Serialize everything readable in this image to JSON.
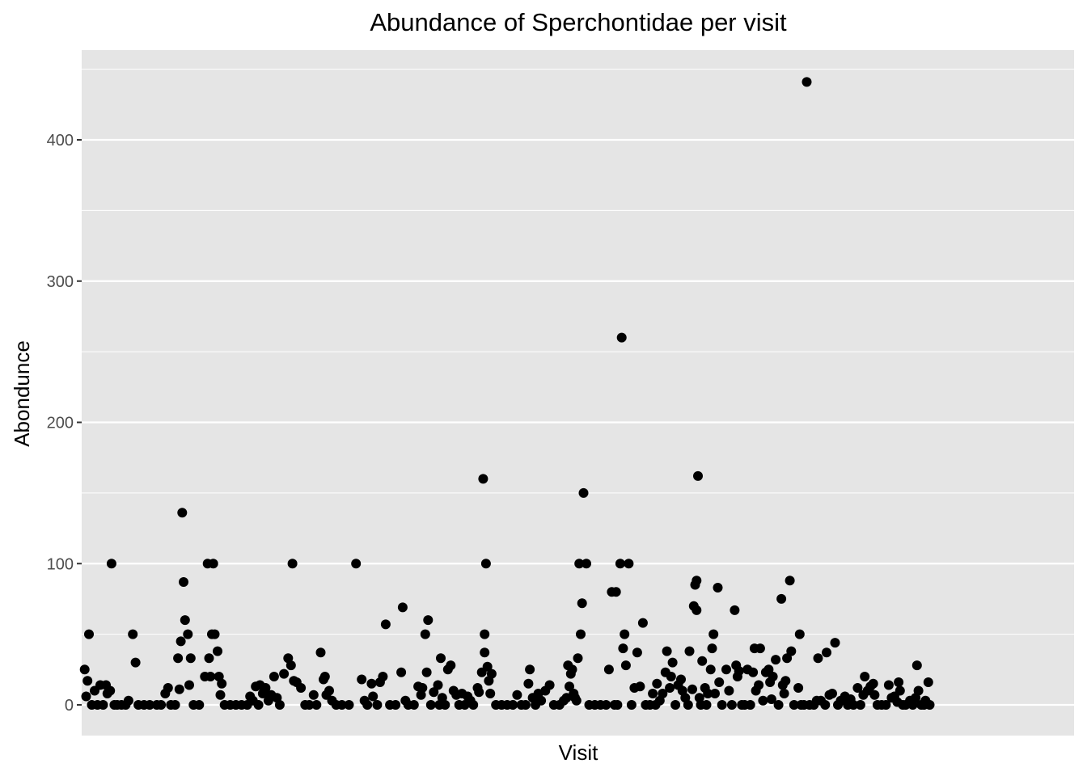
{
  "chart_data": {
    "type": "scatter",
    "title": "Abundance of Sperchontidae per visit",
    "xlabel": "Visit",
    "ylabel": "Abondunce",
    "ylim": [
      -22,
      450
    ],
    "xlim": [
      0,
      700
    ],
    "y_ticks": [
      0,
      100,
      200,
      300,
      400
    ],
    "y_tick_labels": [
      "0",
      "100",
      "200",
      "300",
      "400"
    ],
    "x_ticks_shown": false,
    "grid": true,
    "legend": "none",
    "colors": {
      "panel": "#e5e5e5",
      "grid": "#ffffff",
      "point": "#000000",
      "tick_text": "#4d4d4d"
    },
    "points": [
      {
        "x": 1,
        "y": 25
      },
      {
        "x": 2,
        "y": 6
      },
      {
        "x": 3,
        "y": 17
      },
      {
        "x": 4,
        "y": 50
      },
      {
        "x": 6,
        "y": 0
      },
      {
        "x": 8,
        "y": 10
      },
      {
        "x": 10,
        "y": 0
      },
      {
        "x": 12,
        "y": 14
      },
      {
        "x": 14,
        "y": 0
      },
      {
        "x": 16,
        "y": 14
      },
      {
        "x": 17,
        "y": 8
      },
      {
        "x": 19,
        "y": 10
      },
      {
        "x": 20,
        "y": 100
      },
      {
        "x": 22,
        "y": 0
      },
      {
        "x": 24,
        "y": 0
      },
      {
        "x": 27,
        "y": 0
      },
      {
        "x": 30,
        "y": 0
      },
      {
        "x": 32,
        "y": 3
      },
      {
        "x": 35,
        "y": 50
      },
      {
        "x": 37,
        "y": 30
      },
      {
        "x": 39,
        "y": 0
      },
      {
        "x": 43,
        "y": 0
      },
      {
        "x": 47,
        "y": 0
      },
      {
        "x": 52,
        "y": 0
      },
      {
        "x": 55,
        "y": 0
      },
      {
        "x": 58,
        "y": 8
      },
      {
        "x": 60,
        "y": 12
      },
      {
        "x": 62,
        "y": 0
      },
      {
        "x": 65,
        "y": 0
      },
      {
        "x": 67,
        "y": 33
      },
      {
        "x": 68,
        "y": 11
      },
      {
        "x": 69,
        "y": 45
      },
      {
        "x": 70,
        "y": 136
      },
      {
        "x": 71,
        "y": 87
      },
      {
        "x": 72,
        "y": 60
      },
      {
        "x": 74,
        "y": 50
      },
      {
        "x": 75,
        "y": 14
      },
      {
        "x": 76,
        "y": 33
      },
      {
        "x": 78,
        "y": 0
      },
      {
        "x": 82,
        "y": 0
      },
      {
        "x": 86,
        "y": 20
      },
      {
        "x": 88,
        "y": 100
      },
      {
        "x": 89,
        "y": 33
      },
      {
        "x": 90,
        "y": 20
      },
      {
        "x": 91,
        "y": 50
      },
      {
        "x": 92,
        "y": 100
      },
      {
        "x": 93,
        "y": 50
      },
      {
        "x": 95,
        "y": 38
      },
      {
        "x": 96,
        "y": 20
      },
      {
        "x": 97,
        "y": 7
      },
      {
        "x": 98,
        "y": 15
      },
      {
        "x": 100,
        "y": 0
      },
      {
        "x": 104,
        "y": 0
      },
      {
        "x": 108,
        "y": 0
      },
      {
        "x": 112,
        "y": 0
      },
      {
        "x": 116,
        "y": 0
      },
      {
        "x": 118,
        "y": 6
      },
      {
        "x": 120,
        "y": 3
      },
      {
        "x": 122,
        "y": 13
      },
      {
        "x": 124,
        "y": 0
      },
      {
        "x": 125,
        "y": 14
      },
      {
        "x": 127,
        "y": 8
      },
      {
        "x": 129,
        "y": 12
      },
      {
        "x": 131,
        "y": 3
      },
      {
        "x": 133,
        "y": 7
      },
      {
        "x": 135,
        "y": 20
      },
      {
        "x": 137,
        "y": 5
      },
      {
        "x": 139,
        "y": 0
      },
      {
        "x": 142,
        "y": 22
      },
      {
        "x": 145,
        "y": 33
      },
      {
        "x": 147,
        "y": 28
      },
      {
        "x": 148,
        "y": 100
      },
      {
        "x": 149,
        "y": 17
      },
      {
        "x": 151,
        "y": 16
      },
      {
        "x": 154,
        "y": 12
      },
      {
        "x": 157,
        "y": 0
      },
      {
        "x": 160,
        "y": 0
      },
      {
        "x": 163,
        "y": 7
      },
      {
        "x": 165,
        "y": 0
      },
      {
        "x": 168,
        "y": 37
      },
      {
        "x": 170,
        "y": 18
      },
      {
        "x": 171,
        "y": 20
      },
      {
        "x": 172,
        "y": 7
      },
      {
        "x": 174,
        "y": 10
      },
      {
        "x": 176,
        "y": 3
      },
      {
        "x": 179,
        "y": 0
      },
      {
        "x": 183,
        "y": 0
      },
      {
        "x": 188,
        "y": 0
      },
      {
        "x": 193,
        "y": 100
      },
      {
        "x": 197,
        "y": 18
      },
      {
        "x": 199,
        "y": 3
      },
      {
        "x": 201,
        "y": 0
      },
      {
        "x": 204,
        "y": 15
      },
      {
        "x": 205,
        "y": 6
      },
      {
        "x": 208,
        "y": 0
      },
      {
        "x": 210,
        "y": 16
      },
      {
        "x": 212,
        "y": 20
      },
      {
        "x": 214,
        "y": 57
      },
      {
        "x": 217,
        "y": 0
      },
      {
        "x": 221,
        "y": 0
      },
      {
        "x": 225,
        "y": 23
      },
      {
        "x": 226,
        "y": 69
      },
      {
        "x": 228,
        "y": 3
      },
      {
        "x": 230,
        "y": 0
      },
      {
        "x": 234,
        "y": 0
      },
      {
        "x": 237,
        "y": 13
      },
      {
        "x": 239,
        "y": 7
      },
      {
        "x": 240,
        "y": 12
      },
      {
        "x": 242,
        "y": 50
      },
      {
        "x": 243,
        "y": 23
      },
      {
        "x": 244,
        "y": 60
      },
      {
        "x": 246,
        "y": 0
      },
      {
        "x": 248,
        "y": 9
      },
      {
        "x": 251,
        "y": 14
      },
      {
        "x": 252,
        "y": 0
      },
      {
        "x": 253,
        "y": 33
      },
      {
        "x": 254,
        "y": 5
      },
      {
        "x": 256,
        "y": 0
      },
      {
        "x": 258,
        "y": 25
      },
      {
        "x": 260,
        "y": 28
      },
      {
        "x": 262,
        "y": 10
      },
      {
        "x": 264,
        "y": 7
      },
      {
        "x": 266,
        "y": 0
      },
      {
        "x": 268,
        "y": 8
      },
      {
        "x": 270,
        "y": 0
      },
      {
        "x": 272,
        "y": 6
      },
      {
        "x": 274,
        "y": 3
      },
      {
        "x": 276,
        "y": 0
      },
      {
        "x": 279,
        "y": 12
      },
      {
        "x": 280,
        "y": 9
      },
      {
        "x": 282,
        "y": 23
      },
      {
        "x": 283,
        "y": 160
      },
      {
        "x": 284,
        "y": 50
      },
      {
        "x": 284,
        "y": 37
      },
      {
        "x": 285,
        "y": 100
      },
      {
        "x": 286,
        "y": 27
      },
      {
        "x": 287,
        "y": 17
      },
      {
        "x": 288,
        "y": 8
      },
      {
        "x": 289,
        "y": 22
      },
      {
        "x": 292,
        "y": 0
      },
      {
        "x": 296,
        "y": 0
      },
      {
        "x": 300,
        "y": 0
      },
      {
        "x": 304,
        "y": 0
      },
      {
        "x": 307,
        "y": 7
      },
      {
        "x": 310,
        "y": 0
      },
      {
        "x": 313,
        "y": 0
      },
      {
        "x": 315,
        "y": 15
      },
      {
        "x": 316,
        "y": 25
      },
      {
        "x": 318,
        "y": 5
      },
      {
        "x": 320,
        "y": 0
      },
      {
        "x": 322,
        "y": 8
      },
      {
        "x": 324,
        "y": 3
      },
      {
        "x": 327,
        "y": 10
      },
      {
        "x": 330,
        "y": 14
      },
      {
        "x": 333,
        "y": 0
      },
      {
        "x": 337,
        "y": 0
      },
      {
        "x": 340,
        "y": 3
      },
      {
        "x": 342,
        "y": 5
      },
      {
        "x": 343,
        "y": 28
      },
      {
        "x": 344,
        "y": 13
      },
      {
        "x": 345,
        "y": 22
      },
      {
        "x": 346,
        "y": 25
      },
      {
        "x": 347,
        "y": 8
      },
      {
        "x": 348,
        "y": 5
      },
      {
        "x": 349,
        "y": 3
      },
      {
        "x": 350,
        "y": 33
      },
      {
        "x": 351,
        "y": 100
      },
      {
        "x": 352,
        "y": 50
      },
      {
        "x": 353,
        "y": 72
      },
      {
        "x": 354,
        "y": 150
      },
      {
        "x": 356,
        "y": 100
      },
      {
        "x": 358,
        "y": 0
      },
      {
        "x": 362,
        "y": 0
      },
      {
        "x": 366,
        "y": 0
      },
      {
        "x": 370,
        "y": 0
      },
      {
        "x": 372,
        "y": 25
      },
      {
        "x": 374,
        "y": 80
      },
      {
        "x": 376,
        "y": 0
      },
      {
        "x": 377,
        "y": 80
      },
      {
        "x": 378,
        "y": 0
      },
      {
        "x": 380,
        "y": 100
      },
      {
        "x": 381,
        "y": 260
      },
      {
        "x": 382,
        "y": 40
      },
      {
        "x": 383,
        "y": 50
      },
      {
        "x": 384,
        "y": 28
      },
      {
        "x": 386,
        "y": 100
      },
      {
        "x": 388,
        "y": 0
      },
      {
        "x": 390,
        "y": 12
      },
      {
        "x": 392,
        "y": 37
      },
      {
        "x": 394,
        "y": 13
      },
      {
        "x": 396,
        "y": 58
      },
      {
        "x": 398,
        "y": 0
      },
      {
        "x": 401,
        "y": 0
      },
      {
        "x": 403,
        "y": 8
      },
      {
        "x": 405,
        "y": 0
      },
      {
        "x": 406,
        "y": 15
      },
      {
        "x": 408,
        "y": 3
      },
      {
        "x": 410,
        "y": 8
      },
      {
        "x": 412,
        "y": 23
      },
      {
        "x": 413,
        "y": 38
      },
      {
        "x": 415,
        "y": 12
      },
      {
        "x": 416,
        "y": 20
      },
      {
        "x": 417,
        "y": 30
      },
      {
        "x": 419,
        "y": 0
      },
      {
        "x": 421,
        "y": 14
      },
      {
        "x": 423,
        "y": 18
      },
      {
        "x": 424,
        "y": 10
      },
      {
        "x": 426,
        "y": 5
      },
      {
        "x": 428,
        "y": 0
      },
      {
        "x": 429,
        "y": 38
      },
      {
        "x": 431,
        "y": 11
      },
      {
        "x": 432,
        "y": 70
      },
      {
        "x": 433,
        "y": 85
      },
      {
        "x": 434,
        "y": 67
      },
      {
        "x": 434,
        "y": 88
      },
      {
        "x": 435,
        "y": 162
      },
      {
        "x": 436,
        "y": 5
      },
      {
        "x": 437,
        "y": 0
      },
      {
        "x": 438,
        "y": 31
      },
      {
        "x": 440,
        "y": 12
      },
      {
        "x": 441,
        "y": 0
      },
      {
        "x": 442,
        "y": 8
      },
      {
        "x": 444,
        "y": 25
      },
      {
        "x": 445,
        "y": 40
      },
      {
        "x": 446,
        "y": 50
      },
      {
        "x": 447,
        "y": 8
      },
      {
        "x": 449,
        "y": 83
      },
      {
        "x": 450,
        "y": 16
      },
      {
        "x": 452,
        "y": 0
      },
      {
        "x": 455,
        "y": 25
      },
      {
        "x": 457,
        "y": 10
      },
      {
        "x": 459,
        "y": 0
      },
      {
        "x": 461,
        "y": 67
      },
      {
        "x": 462,
        "y": 28
      },
      {
        "x": 463,
        "y": 20
      },
      {
        "x": 464,
        "y": 24
      },
      {
        "x": 466,
        "y": 0
      },
      {
        "x": 468,
        "y": 0
      },
      {
        "x": 470,
        "y": 25
      },
      {
        "x": 472,
        "y": 0
      },
      {
        "x": 474,
        "y": 23
      },
      {
        "x": 475,
        "y": 40
      },
      {
        "x": 476,
        "y": 10
      },
      {
        "x": 478,
        "y": 14
      },
      {
        "x": 479,
        "y": 40
      },
      {
        "x": 481,
        "y": 3
      },
      {
        "x": 483,
        "y": 23
      },
      {
        "x": 485,
        "y": 25
      },
      {
        "x": 486,
        "y": 16
      },
      {
        "x": 487,
        "y": 4
      },
      {
        "x": 488,
        "y": 20
      },
      {
        "x": 490,
        "y": 32
      },
      {
        "x": 492,
        "y": 0
      },
      {
        "x": 494,
        "y": 75
      },
      {
        "x": 495,
        "y": 14
      },
      {
        "x": 496,
        "y": 8
      },
      {
        "x": 497,
        "y": 17
      },
      {
        "x": 498,
        "y": 33
      },
      {
        "x": 500,
        "y": 88
      },
      {
        "x": 501,
        "y": 38
      },
      {
        "x": 503,
        "y": 0
      },
      {
        "x": 506,
        "y": 12
      },
      {
        "x": 507,
        "y": 50
      },
      {
        "x": 508,
        "y": 0
      },
      {
        "x": 510,
        "y": 0
      },
      {
        "x": 512,
        "y": 441
      },
      {
        "x": 514,
        "y": 0
      },
      {
        "x": 517,
        "y": 0
      },
      {
        "x": 519,
        "y": 3
      },
      {
        "x": 520,
        "y": 33
      },
      {
        "x": 522,
        "y": 3
      },
      {
        "x": 525,
        "y": 0
      },
      {
        "x": 526,
        "y": 37
      },
      {
        "x": 528,
        "y": 7
      },
      {
        "x": 530,
        "y": 8
      },
      {
        "x": 532,
        "y": 44
      },
      {
        "x": 534,
        "y": 0
      },
      {
        "x": 536,
        "y": 3
      },
      {
        "x": 539,
        "y": 6
      },
      {
        "x": 541,
        "y": 0
      },
      {
        "x": 543,
        "y": 4
      },
      {
        "x": 545,
        "y": 0
      },
      {
        "x": 548,
        "y": 12
      },
      {
        "x": 550,
        "y": 0
      },
      {
        "x": 552,
        "y": 7
      },
      {
        "x": 553,
        "y": 20
      },
      {
        "x": 555,
        "y": 10
      },
      {
        "x": 557,
        "y": 13
      },
      {
        "x": 559,
        "y": 15
      },
      {
        "x": 560,
        "y": 7
      },
      {
        "x": 562,
        "y": 0
      },
      {
        "x": 565,
        "y": 0
      },
      {
        "x": 568,
        "y": 0
      },
      {
        "x": 570,
        "y": 14
      },
      {
        "x": 572,
        "y": 5
      },
      {
        "x": 574,
        "y": 6
      },
      {
        "x": 576,
        "y": 2
      },
      {
        "x": 577,
        "y": 16
      },
      {
        "x": 578,
        "y": 10
      },
      {
        "x": 580,
        "y": 0
      },
      {
        "x": 582,
        "y": 0
      },
      {
        "x": 585,
        "y": 3
      },
      {
        "x": 587,
        "y": 0
      },
      {
        "x": 589,
        "y": 5
      },
      {
        "x": 590,
        "y": 28
      },
      {
        "x": 591,
        "y": 10
      },
      {
        "x": 593,
        "y": 0
      },
      {
        "x": 595,
        "y": 0
      },
      {
        "x": 596,
        "y": 3
      },
      {
        "x": 598,
        "y": 16
      },
      {
        "x": 599,
        "y": 0
      }
    ]
  }
}
